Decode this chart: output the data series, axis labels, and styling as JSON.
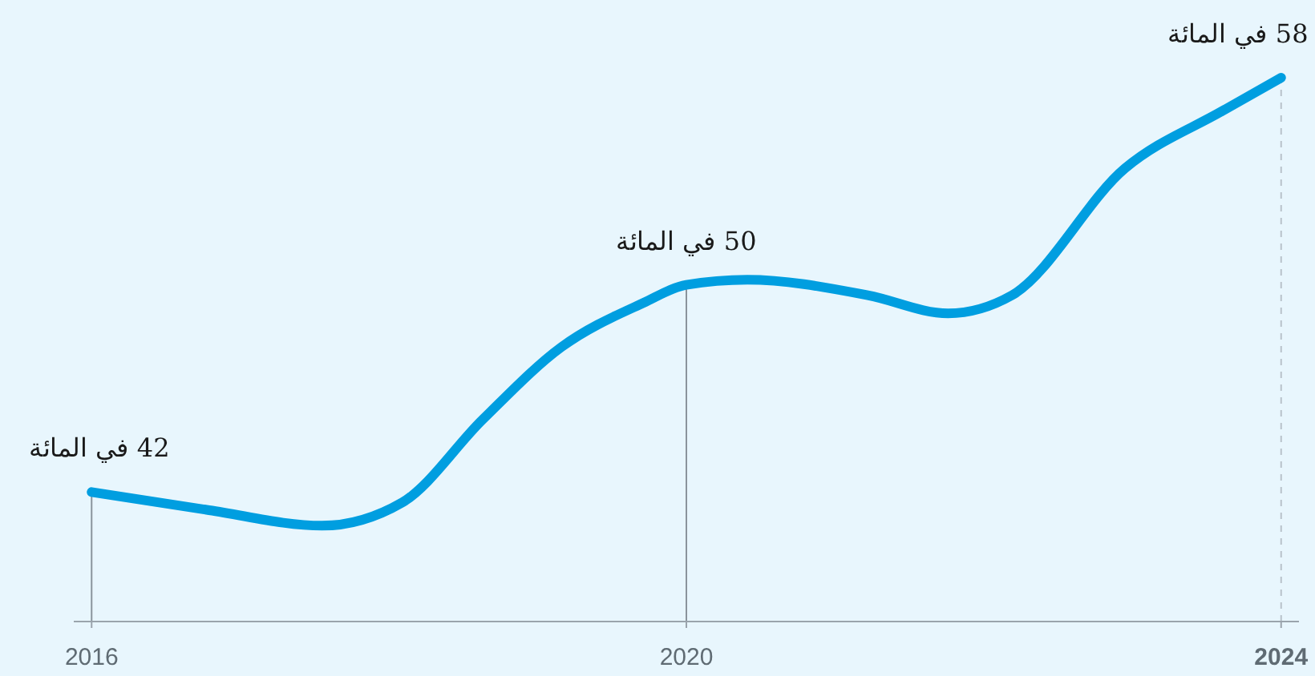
{
  "chart_data": {
    "type": "line",
    "x": [
      2016,
      2016.79,
      2017.55,
      2018.09,
      2018.63,
      2019.16,
      2019.71,
      2020,
      2020.41,
      2021.22,
      2021.76,
      2022.19,
      2022.95,
      2023.6,
      2024
    ],
    "series": [
      {
        "color": "#009ee0",
        "values": [
          42,
          41.3,
          40.7,
          41.6,
          44.8,
          47.6,
          49.3,
          50,
          50.2,
          49.6,
          48.9,
          49.6,
          54.5,
          56.7,
          58
        ],
        "value_labels": [
          "42 في المائة",
          null,
          null,
          null,
          null,
          null,
          null,
          "50 في المائة",
          null,
          null,
          null,
          null,
          null,
          null,
          "58 في المائة"
        ]
      }
    ],
    "xlim": [
      2015.88,
      2024.12
    ],
    "ylim": [
      37,
      61
    ],
    "xticks": [
      2016,
      2020,
      2024
    ],
    "tick_labels": "x",
    "ref_lines": [
      {
        "axis": "x",
        "value": 2016,
        "color": "#8a949c",
        "line_style": "solid"
      },
      {
        "axis": "x",
        "value": 2020,
        "color": "#8a949c",
        "line_style": "solid"
      },
      {
        "axis": "x",
        "value": 2024,
        "color": "#b8c2ca",
        "line_style": "dashed"
      }
    ],
    "marker": "none",
    "line_style": "solid"
  }
}
